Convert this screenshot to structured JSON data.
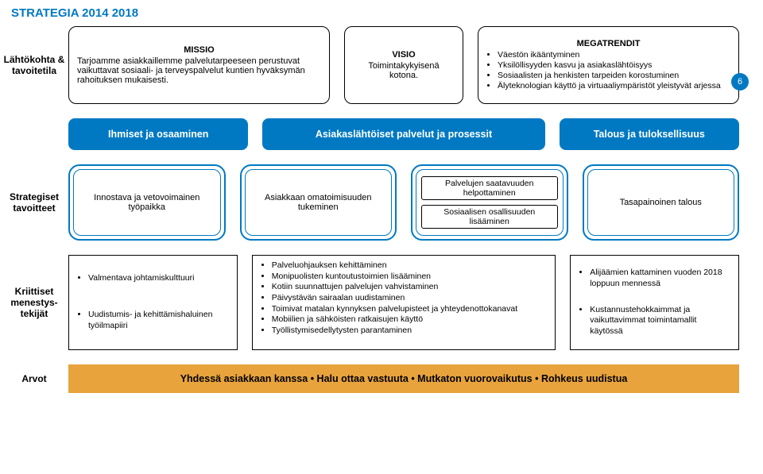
{
  "page": {
    "title": "STRATEGIA 2014 2018",
    "page_number": "6"
  },
  "colors": {
    "brand_blue": "#0079c2",
    "accent_orange": "#e8a33d",
    "border_black": "#000000",
    "background": "#ffffff"
  },
  "labels": {
    "row1": "Lähtökohta & tavoitetila",
    "row2": "",
    "row3": "Strategiset tavoitteet",
    "row4": "Kriittiset menestys-tekijät",
    "row5": "Arvot"
  },
  "row1": {
    "missio": {
      "title": "MISSIO",
      "text": "Tarjoamme asiakkaillemme palvelutarpeeseen perustuvat vaikuttavat sosiaali- ja terveyspalvelut kuntien hyväksymän rahoituksen mukaisesti."
    },
    "visio": {
      "title": "VISIO",
      "text": "Toimintakykyisenä kotona."
    },
    "megatrendit": {
      "title": "MEGATRENDIT",
      "items": [
        "Väestön ikääntyminen",
        "Yksilöllisyyden kasvu ja asiakaslähtöisyys",
        "Sosiaalisten ja henkisten tarpeiden korostuminen",
        "Älyteknologian käyttö ja virtuaaliympäristöt yleistyvät arjessa"
      ]
    }
  },
  "row2": {
    "pills": [
      "Ihmiset ja osaaminen",
      "Asiakaslähtöiset palvelut ja prosessit",
      "Talous ja tuloksellisuus"
    ]
  },
  "row3": {
    "c1": "Innostava ja vetovoimainen työpaikka",
    "c2": "Asiakkaan omatoimisuuden tukeminen",
    "c3a": "Palvelujen saatavuuden helpottaminen",
    "c3b": "Sosiaalisen osallisuuden lisääminen",
    "c4": "Tasapainoinen talous"
  },
  "row4": {
    "box1": [
      "Valmentava johtamiskulttuuri",
      "Uudistumis- ja kehittämishaluinen työilmapiiri"
    ],
    "box2": [
      "Palveluohjauksen kehittäminen",
      "Monipuolisten kuntoutustoimien lisääminen",
      "Kotiin suunnattujen palvelujen vahvistaminen",
      "Päivystävän sairaalan uudistaminen",
      "Toimivat matalan kynnyksen palvelupisteet ja yhteydenottokanavat",
      "Mobiilien ja sähköisten ratkaisujen käyttö",
      "Työllistymisedellytysten parantaminen"
    ],
    "box3": [
      "Alijäämien kattaminen vuoden 2018 loppuun mennessä",
      "Kustannustehokkaimmat ja vaikuttavimmat toimintamallit käytössä"
    ]
  },
  "row5": {
    "text": "Yhdessä asiakkaan kanssa  •  Halu ottaa vastuuta  •  Mutkaton vuorovaikutus  •  Rohkeus uudistua"
  }
}
